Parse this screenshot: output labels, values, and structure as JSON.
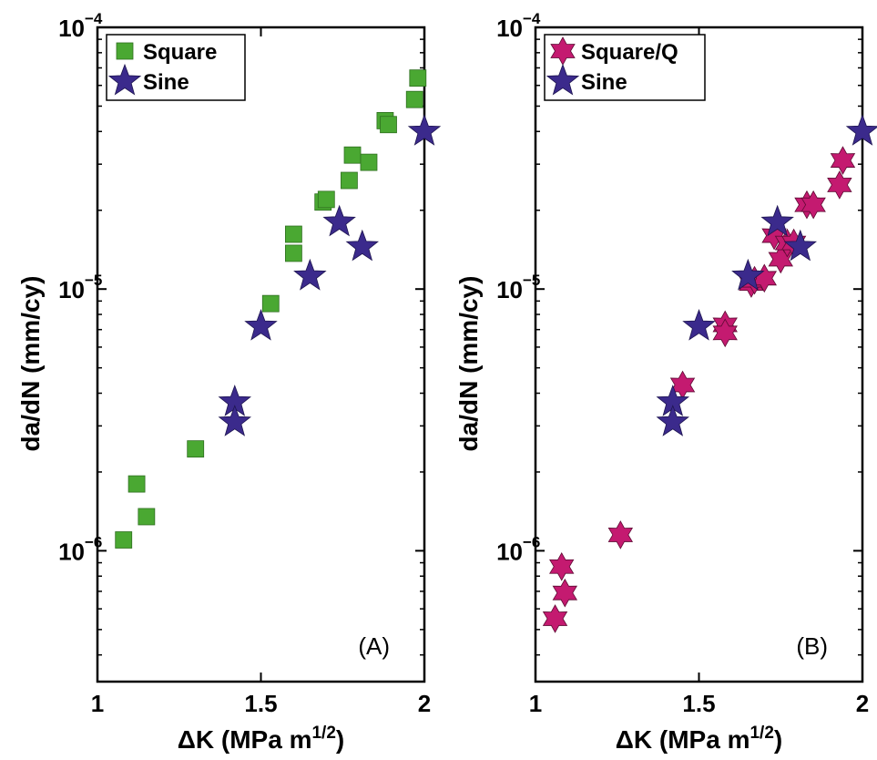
{
  "chart_data": [
    {
      "id": "A",
      "type": "scatter",
      "panel_label": "(A)",
      "xlabel": "ΔK (MPa m",
      "xlabel_sup": "1/2",
      "xlabel_end": ")",
      "ylabel": "da/dN (mm/cy)",
      "xlim": [
        1,
        2
      ],
      "ylim_log": [
        -6.5,
        -4
      ],
      "xticks": [
        {
          "v": 1,
          "label": "1"
        },
        {
          "v": 1.5,
          "label": "1.5"
        },
        {
          "v": 2,
          "label": "2"
        }
      ],
      "yticks": [
        {
          "v": -6,
          "base": "10",
          "exp": "−6"
        },
        {
          "v": -5,
          "base": "10",
          "exp": "−5"
        },
        {
          "v": -4,
          "base": "10",
          "exp": "−4"
        }
      ],
      "legend": {
        "position": "top-left"
      },
      "series": [
        {
          "name": "Square",
          "marker": "square",
          "color": "#4aa832",
          "points": [
            [
              1.08,
              1.1e-06
            ],
            [
              1.12,
              1.8e-06
            ],
            [
              1.15,
              1.35e-06
            ],
            [
              1.3,
              2.45e-06
            ],
            [
              1.53,
              8.8e-06
            ],
            [
              1.6,
              1.37e-05
            ],
            [
              1.6,
              1.62e-05
            ],
            [
              1.69,
              2.15e-05
            ],
            [
              1.7,
              2.2e-05
            ],
            [
              1.77,
              2.6e-05
            ],
            [
              1.78,
              3.25e-05
            ],
            [
              1.83,
              3.05e-05
            ],
            [
              1.88,
              4.4e-05
            ],
            [
              1.89,
              4.25e-05
            ],
            [
              1.97,
              5.3e-05
            ],
            [
              1.98,
              6.4e-05
            ]
          ]
        },
        {
          "name": "Sine",
          "marker": "star5",
          "color": "#3b2a8c",
          "points": [
            [
              1.42,
              3.7e-06
            ],
            [
              1.42,
              3.1e-06
            ],
            [
              1.5,
              7.2e-06
            ],
            [
              1.65,
              1.12e-05
            ],
            [
              1.74,
              1.8e-05
            ],
            [
              1.81,
              1.45e-05
            ],
            [
              2.0,
              4e-05
            ]
          ]
        }
      ]
    },
    {
      "id": "B",
      "type": "scatter",
      "panel_label": "(B)",
      "xlabel": "ΔK (MPa m",
      "xlabel_sup": "1/2",
      "xlabel_end": ")",
      "ylabel": "da/dN (mm/cy)",
      "xlim": [
        1,
        2
      ],
      "ylim_log": [
        -6.5,
        -4
      ],
      "xticks": [
        {
          "v": 1,
          "label": "1"
        },
        {
          "v": 1.5,
          "label": "1.5"
        },
        {
          "v": 2,
          "label": "2"
        }
      ],
      "yticks": [
        {
          "v": -6,
          "base": "10",
          "exp": "−6"
        },
        {
          "v": -5,
          "base": "10",
          "exp": "−5"
        },
        {
          "v": -4,
          "base": "10",
          "exp": "−4"
        }
      ],
      "legend": {
        "position": "top-left"
      },
      "series": [
        {
          "name": "Square/Q",
          "marker": "star6",
          "color": "#c41a70",
          "points": [
            [
              1.06,
              5.5e-07
            ],
            [
              1.08,
              8.7e-07
            ],
            [
              1.09,
              6.9e-07
            ],
            [
              1.26,
              1.15e-06
            ],
            [
              1.45,
              4.3e-06
            ],
            [
              1.58,
              7.3e-06
            ],
            [
              1.58,
              6.8e-06
            ],
            [
              1.66,
              1.05e-05
            ],
            [
              1.67,
              1.08e-05
            ],
            [
              1.7,
              1.1e-05
            ],
            [
              1.73,
              1.6e-05
            ],
            [
              1.75,
              1.3e-05
            ],
            [
              1.77,
              1.5e-05
            ],
            [
              1.79,
              1.5e-05
            ],
            [
              1.83,
              2.1e-05
            ],
            [
              1.85,
              2.1e-05
            ],
            [
              1.93,
              2.5e-05
            ],
            [
              1.94,
              3.1e-05
            ]
          ]
        },
        {
          "name": "Sine",
          "marker": "star5",
          "color": "#3b2a8c",
          "points": [
            [
              1.42,
              3.7e-06
            ],
            [
              1.42,
              3.1e-06
            ],
            [
              1.5,
              7.2e-06
            ],
            [
              1.65,
              1.12e-05
            ],
            [
              1.74,
              1.8e-05
            ],
            [
              1.81,
              1.45e-05
            ],
            [
              2.0,
              4e-05
            ]
          ]
        }
      ]
    }
  ]
}
